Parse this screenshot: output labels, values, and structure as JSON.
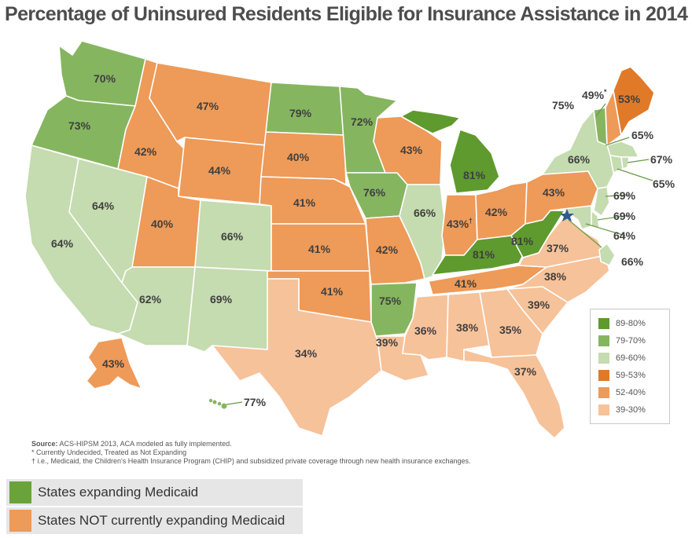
{
  "title": "Percentage of Uninsured Residents Eligible for Insurance Assistance in 2014",
  "colors": {
    "bin_89_80": "#5e9a2e",
    "bin_79_70": "#86b560",
    "bin_69_60": "#c5dbb0",
    "bin_59_53": "#e07a28",
    "bin_52_40": "#ee9a58",
    "bin_39_30": "#f6c29a",
    "key_expanding": "#6aa33a",
    "key_not_expanding": "#ee9a58"
  },
  "states": {
    "WA": "70%",
    "OR": "73%",
    "CA": "64%",
    "NV": "64%",
    "ID": "42%",
    "MT": "47%",
    "WY": "44%",
    "UT": "40%",
    "AZ": "62%",
    "CO": "66%",
    "NM": "69%",
    "ND": "79%",
    "SD": "40%",
    "NE": "41%",
    "KS": "41%",
    "OK": "41%",
    "TX": "34%",
    "MN": "72%",
    "IA": "76%",
    "MO": "42%",
    "AR": "75%",
    "LA": "39%",
    "WI": "43%",
    "IL": "66%",
    "MI": "81%",
    "IN": "43%",
    "OH": "42%",
    "KY": "81%",
    "TN": "41%",
    "MS": "36%",
    "AL": "38%",
    "GA": "35%",
    "FL": "37%",
    "SC": "39%",
    "NC": "38%",
    "VA": "37%",
    "WV": "81%",
    "PA": "43%",
    "NY": "66%",
    "VT": "75%",
    "NH": "49%",
    "ME": "53%",
    "MA": "65%",
    "RI": "67%",
    "CT": "65%",
    "NJ": "69%",
    "DE": "69%",
    "MD": "64%",
    "DC": "66%",
    "AK": "43%",
    "HI": "77%"
  },
  "marks": {
    "in_mark": "†",
    "nh_mark": "*"
  },
  "legend": [
    {
      "label": "89-80%",
      "color": "#5e9a2e"
    },
    {
      "label": "79-70%",
      "color": "#86b560"
    },
    {
      "label": "69-60%",
      "color": "#c5dbb0"
    },
    {
      "label": "59-53%",
      "color": "#e07a28"
    },
    {
      "label": "52-40%",
      "color": "#ee9a58"
    },
    {
      "label": "39-30%",
      "color": "#f6c29a"
    }
  ],
  "notes": {
    "source_label": "Source:",
    "source_text": "ACS-HIPSM 2013, ACA modeled as fully implemented.",
    "undecided": "* Currently Undecided, Treated as Not Expanding",
    "dagger": "† i.e., Medicaid, the Children's Health Insurance Program (CHIP) and subsidized private coverage through new health insurance exchanges."
  },
  "key": {
    "expanding": "States expanding Medicaid",
    "not_expanding": "States NOT currently expanding Medicaid"
  }
}
